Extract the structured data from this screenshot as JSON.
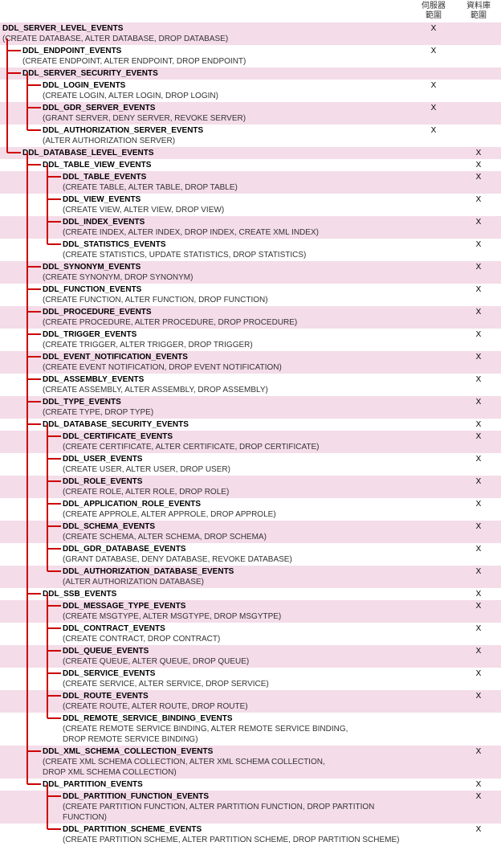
{
  "header": {
    "col1": "伺服器\n範圍",
    "col2": "資料庫\n範圍"
  },
  "colors": {
    "stripe_alt": "#f4dce8",
    "stripe_nrm": "#ffffff",
    "tree_line": "#cc0000",
    "title_color": "#000000",
    "sub_color": "#333333"
  },
  "layout": {
    "indent_step": 25,
    "row_min_height": 13,
    "mark_col_width": 56,
    "font_size": 10,
    "font_family": "Verdana"
  },
  "mark_char": "X",
  "rows": [
    {
      "id": "server_level",
      "indent": 0,
      "title": "DDL_SERVER_LEVEL_EVENTS",
      "sub": "(CREATE DATABASE, ALTER DATABASE, DROP DATABASE)",
      "alt": 1,
      "c1": 1,
      "c2": 0
    },
    {
      "id": "endpoint",
      "indent": 1,
      "title": "DDL_ENDPOINT_EVENTS",
      "sub": "(CREATE ENDPOINT, ALTER ENDPOINT, DROP ENDPOINT)",
      "alt": 0,
      "c1": 1,
      "c2": 0
    },
    {
      "id": "server_security",
      "indent": 1,
      "title": "DDL_SERVER_SECURITY_EVENTS",
      "sub": "",
      "alt": 1,
      "c1": 0,
      "c2": 0
    },
    {
      "id": "login",
      "indent": 2,
      "title": "DDL_LOGIN_EVENTS",
      "sub": "(CREATE LOGIN, ALTER LOGIN, DROP LOGIN)",
      "alt": 0,
      "c1": 1,
      "c2": 0
    },
    {
      "id": "gdr_server",
      "indent": 2,
      "title": "DDL_GDR_SERVER_EVENTS",
      "sub": "(GRANT SERVER, DENY SERVER, REVOKE SERVER)",
      "alt": 1,
      "c1": 1,
      "c2": 0
    },
    {
      "id": "auth_server",
      "indent": 2,
      "title": "DDL_AUTHORIZATION_SERVER_EVENTS",
      "sub": "(ALTER AUTHORIZATION SERVER)",
      "alt": 0,
      "c1": 1,
      "c2": 0
    },
    {
      "id": "db_level",
      "indent": 1,
      "title": "DDL_DATABASE_LEVEL_EVENTS",
      "sub": "",
      "alt": 1,
      "c1": 0,
      "c2": 1
    },
    {
      "id": "table_view",
      "indent": 2,
      "title": "DDL_TABLE_VIEW_EVENTS",
      "sub": "",
      "alt": 0,
      "c1": 0,
      "c2": 1
    },
    {
      "id": "table",
      "indent": 3,
      "title": "DDL_TABLE_EVENTS",
      "sub": "(CREATE TABLE, ALTER TABLE, DROP TABLE)",
      "alt": 1,
      "c1": 0,
      "c2": 1
    },
    {
      "id": "view",
      "indent": 3,
      "title": "DDL_VIEW_EVENTS",
      "sub": "(CREATE VIEW, ALTER VIEW, DROP VIEW)",
      "alt": 0,
      "c1": 0,
      "c2": 1
    },
    {
      "id": "index",
      "indent": 3,
      "title": "DDL_INDEX_EVENTS",
      "sub": "(CREATE INDEX, ALTER INDEX, DROP INDEX, CREATE XML INDEX)",
      "alt": 1,
      "c1": 0,
      "c2": 1
    },
    {
      "id": "stats",
      "indent": 3,
      "title": "DDL_STATISTICS_EVENTS",
      "sub": "(CREATE STATISTICS, UPDATE STATISTICS, DROP STATISTICS)",
      "alt": 0,
      "c1": 0,
      "c2": 1
    },
    {
      "id": "synonym",
      "indent": 2,
      "title": "DDL_SYNONYM_EVENTS",
      "sub": "(CREATE SYNONYM, DROP SYNONYM)",
      "alt": 1,
      "c1": 0,
      "c2": 1
    },
    {
      "id": "function",
      "indent": 2,
      "title": "DDL_FUNCTION_EVENTS",
      "sub": "(CREATE FUNCTION, ALTER FUNCTION, DROP FUNCTION)",
      "alt": 0,
      "c1": 0,
      "c2": 1
    },
    {
      "id": "procedure",
      "indent": 2,
      "title": "DDL_PROCEDURE_EVENTS",
      "sub": "(CREATE PROCEDURE, ALTER PROCEDURE, DROP PROCEDURE)",
      "alt": 1,
      "c1": 0,
      "c2": 1
    },
    {
      "id": "trigger",
      "indent": 2,
      "title": "DDL_TRIGGER_EVENTS",
      "sub": "(CREATE TRIGGER, ALTER TRIGGER, DROP TRIGGER)",
      "alt": 0,
      "c1": 0,
      "c2": 1
    },
    {
      "id": "event_notif",
      "indent": 2,
      "title": "DDL_EVENT_NOTIFICATION_EVENTS",
      "sub": "(CREATE EVENT NOTIFICATION, DROP EVENT NOTIFICATION)",
      "alt": 1,
      "c1": 0,
      "c2": 1
    },
    {
      "id": "assembly",
      "indent": 2,
      "title": "DDL_ASSEMBLY_EVENTS",
      "sub": "(CREATE ASSEMBLY, ALTER ASSEMBLY, DROP ASSEMBLY)",
      "alt": 0,
      "c1": 0,
      "c2": 1
    },
    {
      "id": "type",
      "indent": 2,
      "title": "DDL_TYPE_EVENTS",
      "sub": "(CREATE TYPE, DROP TYPE)",
      "alt": 1,
      "c1": 0,
      "c2": 1
    },
    {
      "id": "db_security",
      "indent": 2,
      "title": "DDL_DATABASE_SECURITY_EVENTS",
      "sub": "",
      "alt": 0,
      "c1": 0,
      "c2": 1
    },
    {
      "id": "certificate",
      "indent": 3,
      "title": "DDL_CERTIFICATE_EVENTS",
      "sub": "(CREATE CERTIFICATE, ALTER CERTIFICATE, DROP CERTIFICATE)",
      "alt": 1,
      "c1": 0,
      "c2": 1
    },
    {
      "id": "user",
      "indent": 3,
      "title": "DDL_USER_EVENTS",
      "sub": "(CREATE USER, ALTER USER, DROP USER)",
      "alt": 0,
      "c1": 0,
      "c2": 1
    },
    {
      "id": "role",
      "indent": 3,
      "title": "DDL_ROLE_EVENTS",
      "sub": "(CREATE ROLE, ALTER ROLE, DROP ROLE)",
      "alt": 1,
      "c1": 0,
      "c2": 1
    },
    {
      "id": "app_role",
      "indent": 3,
      "title": "DDL_APPLICATION_ROLE_EVENTS",
      "sub": "(CREATE APPROLE, ALTER APPROLE, DROP APPROLE)",
      "alt": 0,
      "c1": 0,
      "c2": 1
    },
    {
      "id": "schema",
      "indent": 3,
      "title": "DDL_SCHEMA_EVENTS",
      "sub": "(CREATE SCHEMA, ALTER SCHEMA, DROP SCHEMA)",
      "alt": 1,
      "c1": 0,
      "c2": 1
    },
    {
      "id": "gdr_db",
      "indent": 3,
      "title": "DDL_GDR_DATABASE_EVENTS",
      "sub": "(GRANT DATABASE, DENY DATABASE, REVOKE DATABASE)",
      "alt": 0,
      "c1": 0,
      "c2": 1
    },
    {
      "id": "auth_db",
      "indent": 3,
      "title": "DDL_AUTHORIZATION_DATABASE_EVENTS",
      "sub": "(ALTER AUTHORIZATION DATABASE)",
      "alt": 1,
      "c1": 0,
      "c2": 1
    },
    {
      "id": "ssb",
      "indent": 2,
      "title": "DDL_SSB_EVENTS",
      "sub": "",
      "alt": 0,
      "c1": 0,
      "c2": 1
    },
    {
      "id": "msgtype",
      "indent": 3,
      "title": "DDL_MESSAGE_TYPE_EVENTS",
      "sub": "(CREATE MSGTYPE, ALTER MSGTYPE, DROP MSGYTPE)",
      "alt": 1,
      "c1": 0,
      "c2": 1
    },
    {
      "id": "contract",
      "indent": 3,
      "title": "DDL_CONTRACT_EVENTS",
      "sub": "(CREATE CONTRACT, DROP CONTRACT)",
      "alt": 0,
      "c1": 0,
      "c2": 1
    },
    {
      "id": "queue",
      "indent": 3,
      "title": "DDL_QUEUE_EVENTS",
      "sub": "(CREATE QUEUE, ALTER QUEUE, DROP QUEUE)",
      "alt": 1,
      "c1": 0,
      "c2": 1
    },
    {
      "id": "service",
      "indent": 3,
      "title": "DDL_SERVICE_EVENTS",
      "sub": "(CREATE SERVICE, ALTER SERVICE, DROP SERVICE)",
      "alt": 0,
      "c1": 0,
      "c2": 1
    },
    {
      "id": "route",
      "indent": 3,
      "title": "DDL_ROUTE_EVENTS",
      "sub": "(CREATE ROUTE, ALTER ROUTE, DROP ROUTE)",
      "alt": 1,
      "c1": 0,
      "c2": 1
    },
    {
      "id": "rsb",
      "indent": 3,
      "title": "DDL_REMOTE_SERVICE_BINDING_EVENTS",
      "sub": "(CREATE REMOTE SERVICE BINDING, ALTER REMOTE SERVICE BINDING,\n DROP REMOTE SERVICE BINDING)",
      "alt": 0,
      "c1": 0,
      "c2": 0
    },
    {
      "id": "xml_schema",
      "indent": 2,
      "title": "DDL_XML_SCHEMA_COLLECTION_EVENTS",
      "sub": "(CREATE XML SCHEMA COLLECTION, ALTER XML SCHEMA COLLECTION,\n DROP XML SCHEMA COLLECTION)",
      "alt": 1,
      "c1": 0,
      "c2": 1
    },
    {
      "id": "partition",
      "indent": 2,
      "title": "DDL_PARTITION_EVENTS",
      "sub": "",
      "alt": 0,
      "c1": 0,
      "c2": 1
    },
    {
      "id": "part_func",
      "indent": 3,
      "title": "DDL_PARTITION_FUNCTION_EVENTS",
      "sub": "(CREATE PARTITION FUNCTION, ALTER PARTITION FUNCTION, DROP PARTITION FUNCTION)",
      "alt": 1,
      "c1": 0,
      "c2": 1
    },
    {
      "id": "part_scheme",
      "indent": 3,
      "title": "DDL_PARTITION_SCHEME_EVENTS",
      "sub": "(CREATE PARTITION SCHEME, ALTER PARTITION SCHEME, DROP PARTITION SCHEME)",
      "alt": 0,
      "c1": 0,
      "c2": 1
    }
  ]
}
